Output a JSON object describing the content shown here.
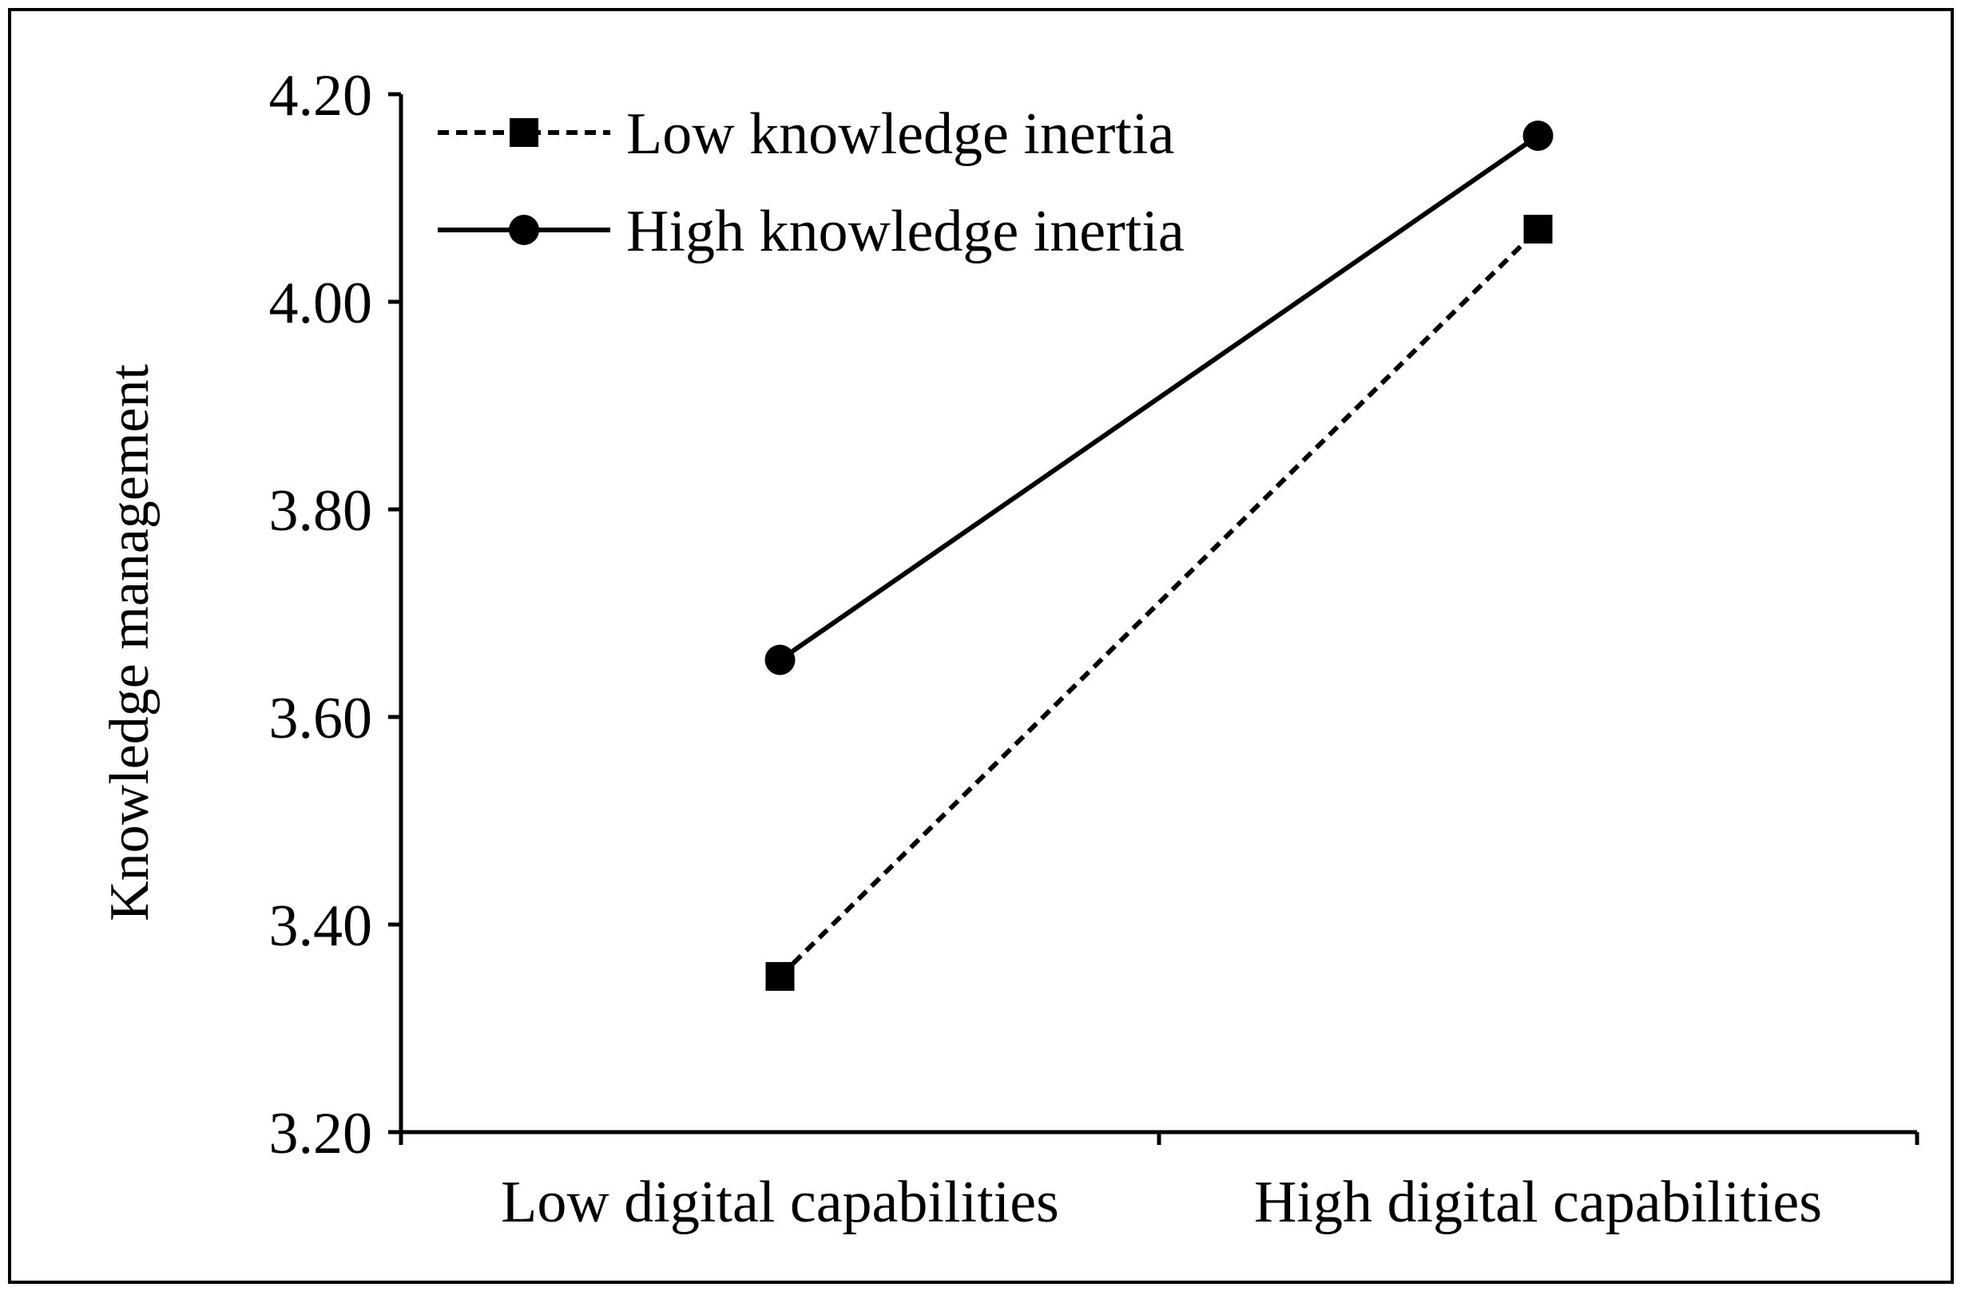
{
  "chart_data": {
    "type": "line",
    "title": "",
    "xlabel": "",
    "ylabel": "Knowledge management",
    "categories": [
      "Low digital capabilities",
      "High digital capabilities"
    ],
    "y_ticks": [
      "3.20",
      "3.40",
      "3.60",
      "3.80",
      "4.00",
      "4.20"
    ],
    "ylim": [
      3.2,
      4.2
    ],
    "grid": false,
    "legend_position": "top-left",
    "series": [
      {
        "name": "Low knowledge inertia",
        "values": [
          3.35,
          4.07
        ],
        "line_style": "dashed",
        "marker": "square",
        "color": "#000000"
      },
      {
        "name": "High knowledge inertia",
        "values": [
          3.655,
          4.16
        ],
        "line_style": "solid",
        "marker": "circle",
        "color": "#000000"
      }
    ]
  }
}
